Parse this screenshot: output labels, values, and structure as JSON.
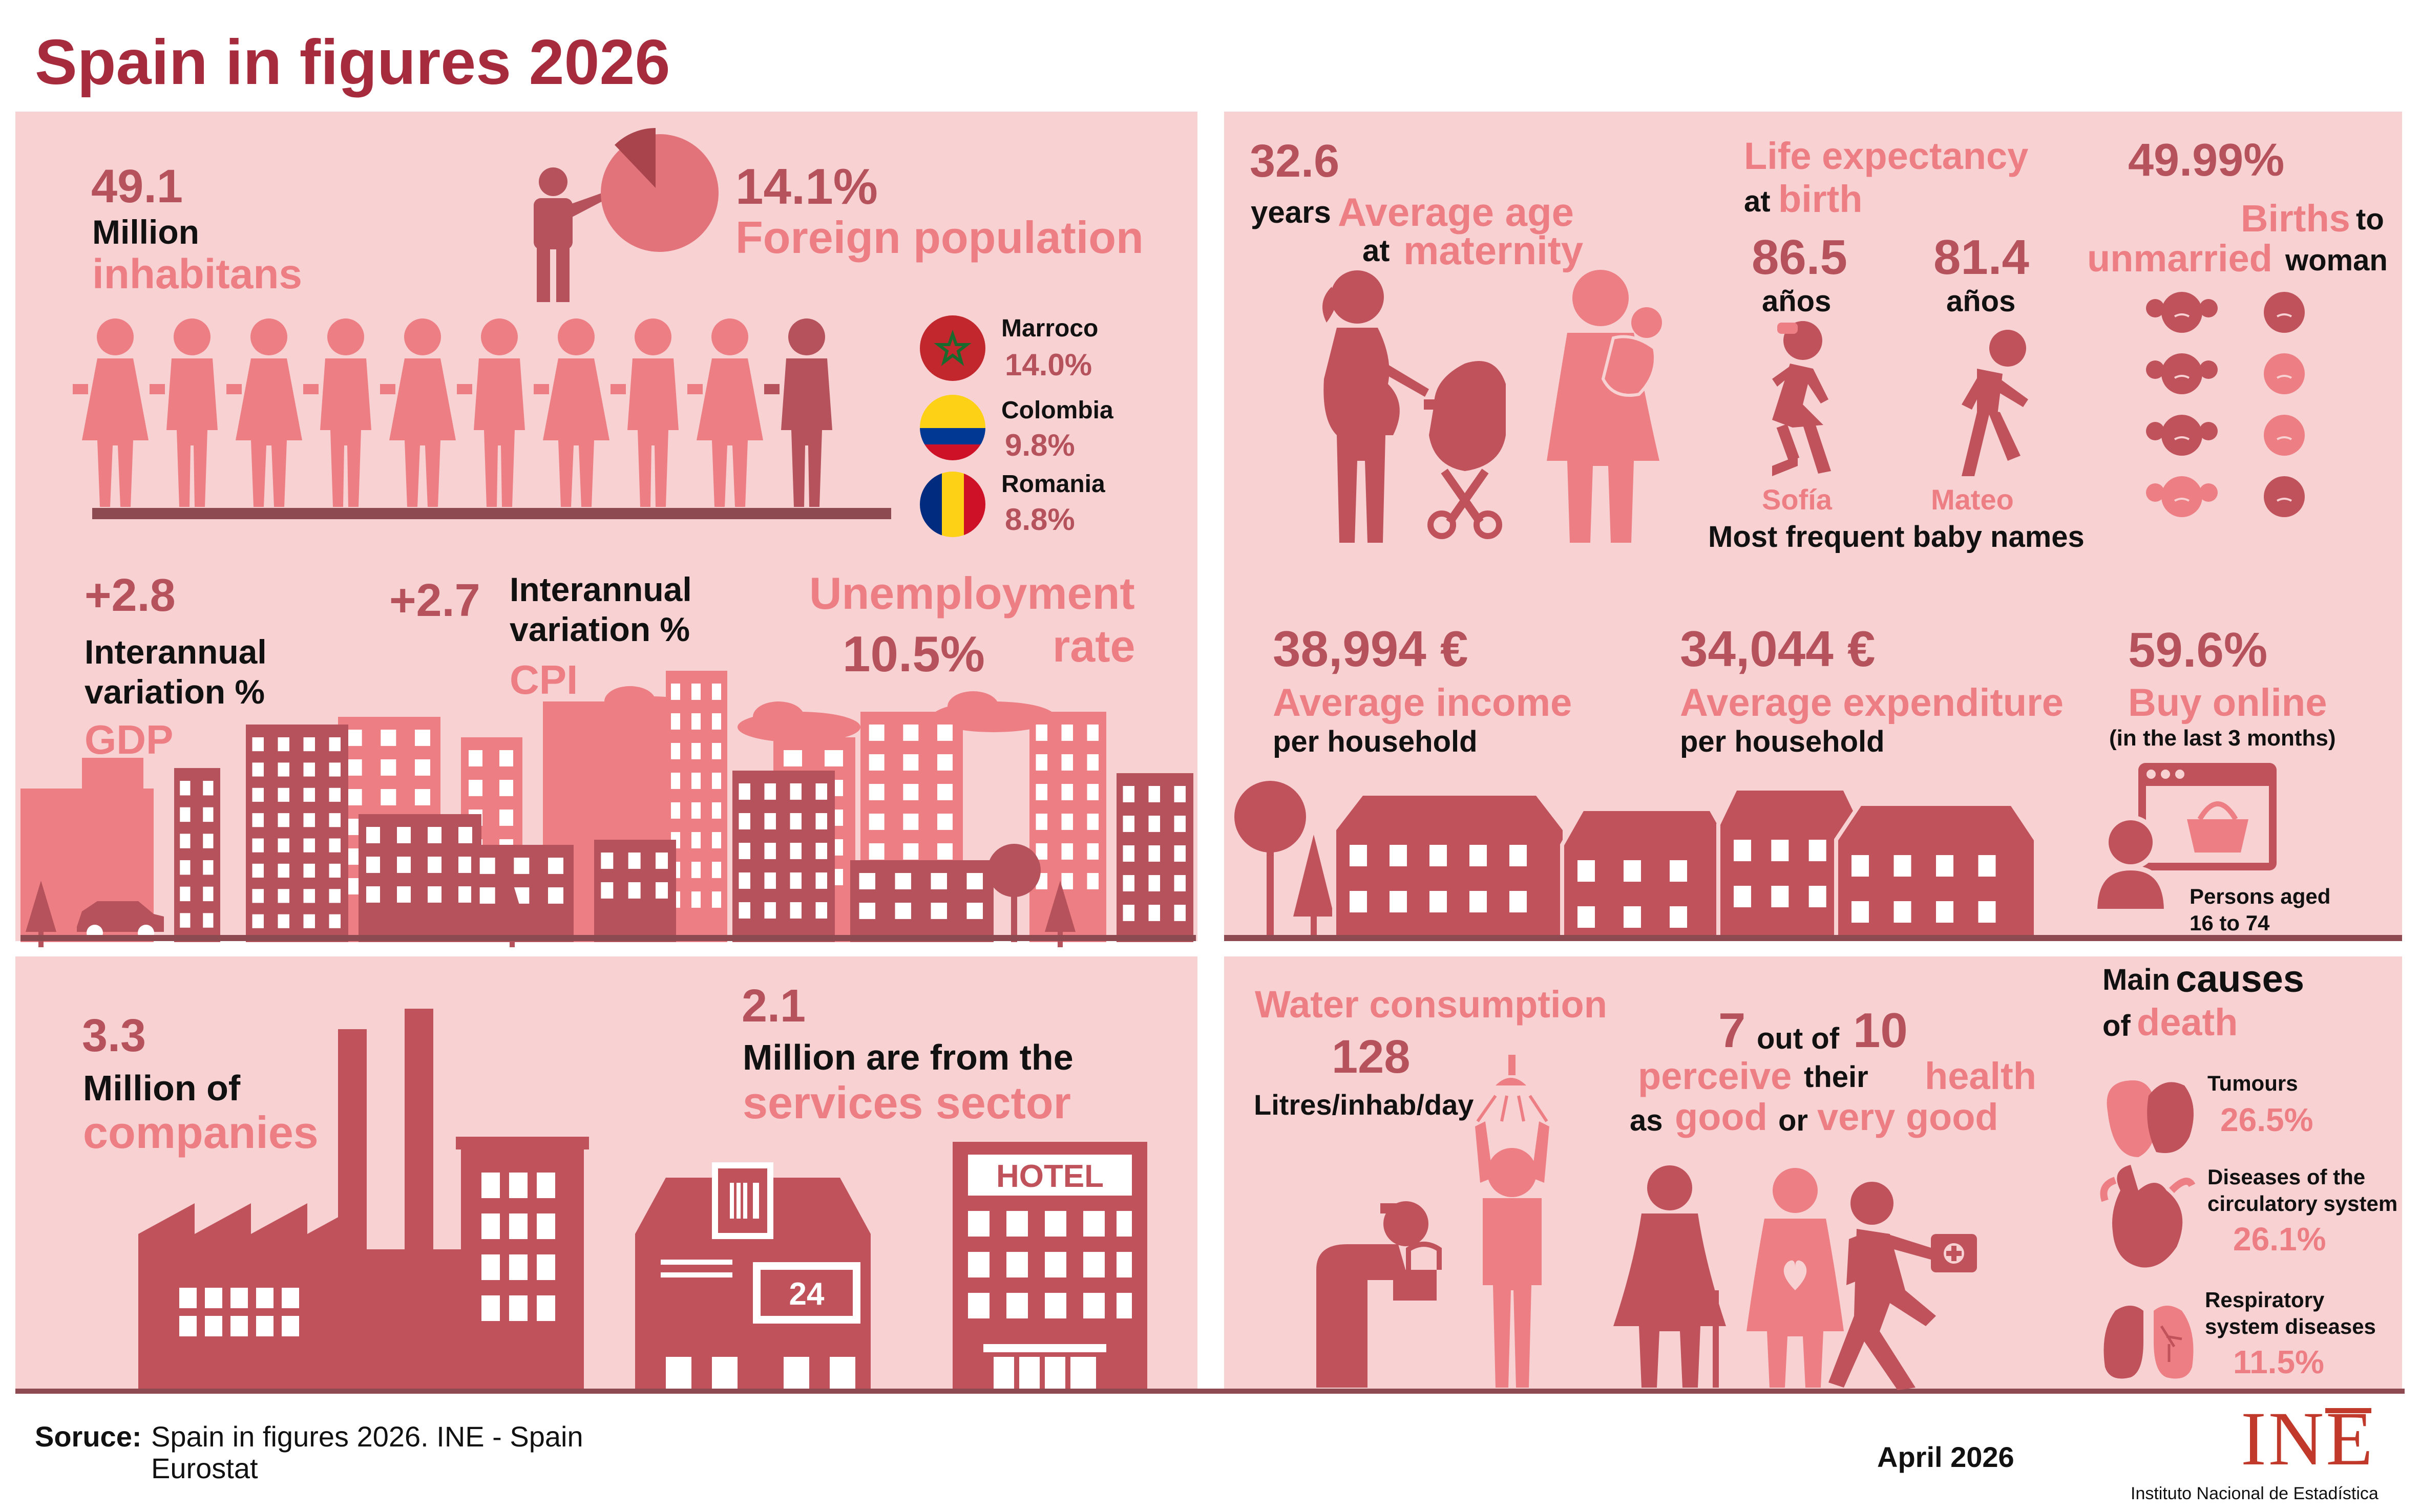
{
  "title": "Spain in figures 2026",
  "colors": {
    "panel_bg": "#f8d1d3",
    "dark_red": "#b5525b",
    "mid_red": "#d96a71",
    "light_red": "#ec7e84",
    "title_red": "#a62b3d",
    "ground": "#8d4a50"
  },
  "population": {
    "value": "49.1",
    "unit": "Million",
    "label": "inhabitans"
  },
  "foreign": {
    "percent": "14.1%",
    "label": "Foreign population",
    "share": 0.141,
    "countries": [
      {
        "name": "Marroco",
        "pct": "14.0%",
        "icon": "morocco-flag-icon"
      },
      {
        "name": "Colombia",
        "pct": "9.8%",
        "icon": "colombia-flag-icon"
      },
      {
        "name": "Romania",
        "pct": "8.8%",
        "icon": "romania-flag-icon"
      }
    ]
  },
  "gdp": {
    "value": "+2.8",
    "line1": "Interannual",
    "line2": "variation %",
    "label": "GDP"
  },
  "cpi": {
    "value": "+2.7",
    "line1": "Interannual",
    "line2": "variation %",
    "label": "CPI"
  },
  "unemployment": {
    "label1": "Unemployment",
    "value": "10.5%",
    "label2": "rate"
  },
  "companies": {
    "value": "3.3",
    "line1": "Million of",
    "label": "companies"
  },
  "services": {
    "value": "2.1",
    "line1": "Million are from the",
    "label": "services sector",
    "hotel_sign": "HOTEL",
    "shop_sign": "24"
  },
  "maternity": {
    "value": "32.6",
    "w1": "years",
    "w2": "Average age",
    "w3": "at",
    "w4": "maternity"
  },
  "life": {
    "label1": "Life expectancy",
    "w1": "at",
    "w2": "birth",
    "female": {
      "value": "86.5",
      "unit": "años",
      "name": "Sofía"
    },
    "male": {
      "value": "81.4",
      "unit": "años",
      "name": "Mateo"
    },
    "names_label": "Most frequent baby names"
  },
  "births": {
    "value": "49.99%",
    "w1": "Births",
    "w2": "to",
    "w3": "unmarried",
    "w4": "woman"
  },
  "income": {
    "value": "38,994 €",
    "label": "Average income",
    "sub": "per household"
  },
  "expenditure": {
    "value": "34,044 €",
    "label": "Average expenditure",
    "sub": "per household"
  },
  "online": {
    "value": "59.6%",
    "label": "Buy online",
    "sub": "(in the last 3 months)",
    "persons": "Persons aged",
    "ages": "16 to 74"
  },
  "water": {
    "label": "Water consumption",
    "value": "128",
    "unit": "Litres/inhab/day"
  },
  "health": {
    "n1": "7",
    "w1": "out of",
    "n2": "10",
    "w2": "perceive",
    "w3": "their",
    "w4": "health",
    "w5": "as",
    "w6": "good",
    "w7": "or",
    "w8": "very good"
  },
  "causes": {
    "w1": "Main",
    "w2": "causes",
    "w3": "of",
    "w4": "death",
    "items": [
      {
        "name": "Tumours",
        "pct": "26.5%",
        "icon": "tumour-icon"
      },
      {
        "name1": "Diseases of the",
        "name2": "circulatory system",
        "pct": "26.1%",
        "icon": "heart-icon"
      },
      {
        "name1": "Respiratory",
        "name2": "system diseases",
        "pct": "11.5%",
        "icon": "lungs-icon"
      }
    ]
  },
  "footer": {
    "source_label": "Soruce:",
    "source1": "Spain in figures 2026. INE - Spain",
    "source2": "Eurostat",
    "date": "April 2026",
    "logo": "INE",
    "org": "Instituto Nacional de Estadística"
  }
}
